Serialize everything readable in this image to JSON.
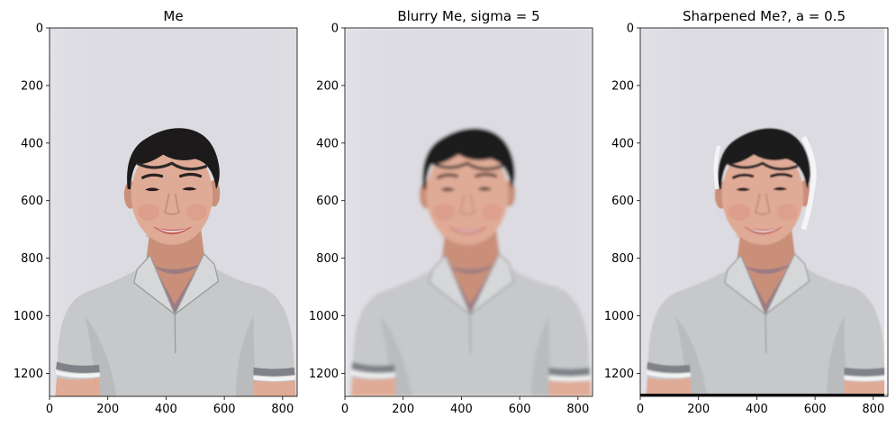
{
  "figure": {
    "panels": [
      {
        "title": "Me",
        "photo": "portrait-photo",
        "blur": 0,
        "sharpen_halo": false,
        "bottom_dark_edge": false,
        "xticks": [
          "0",
          "200",
          "400",
          "600",
          "800"
        ],
        "yticks": [
          "0",
          "200",
          "400",
          "600",
          "800",
          "1000",
          "1200"
        ]
      },
      {
        "title": "Blurry Me, sigma = 5",
        "photo": "blurred-portrait-photo",
        "blur": 6,
        "sharpen_halo": false,
        "bottom_dark_edge": false,
        "xticks": [
          "0",
          "200",
          "400",
          "600",
          "800"
        ],
        "yticks": [
          "0",
          "200",
          "400",
          "600",
          "800",
          "1000",
          "1200"
        ]
      },
      {
        "title": "Sharpened Me?, a = 0.5",
        "photo": "sharpened-portrait-photo",
        "blur": 2.2,
        "sharpen_halo": true,
        "bottom_dark_edge": true,
        "xticks": [
          "0",
          "200",
          "400",
          "600",
          "800"
        ],
        "yticks": [
          "0",
          "200",
          "400",
          "600",
          "800",
          "1000",
          "1200"
        ]
      }
    ],
    "colors": {
      "background": "#dcdbe1",
      "shirt": "#c6c8ca",
      "shirt_shadow": "#a9abae",
      "skin": "#e0ab96",
      "skin_shadow": "#c98f79",
      "hair": "#1c1a1b",
      "lips": "#c2605f",
      "teeth": "#f2ece8",
      "collar_inner": "#9b7c82",
      "sleeve_stripe": "#7f8287",
      "sleeve_white": "#f2f2f2"
    }
  }
}
